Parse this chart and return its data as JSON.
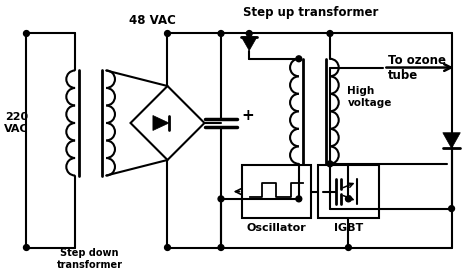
{
  "bg_color": "#ffffff",
  "line_color": "#000000",
  "text_color": "#000000",
  "labels": {
    "vac220": "220\nVAC",
    "vac48": "48 VAC",
    "step_down": "Step down\ntransformer",
    "step_up": "Step up transformer",
    "high_voltage": "High\nvoltage",
    "ozone_tube": "To ozone\ntube",
    "oscillator": "Oscillator",
    "igbt": "IGBT"
  },
  "figsize": [
    4.74,
    2.73
  ],
  "dpi": 100
}
